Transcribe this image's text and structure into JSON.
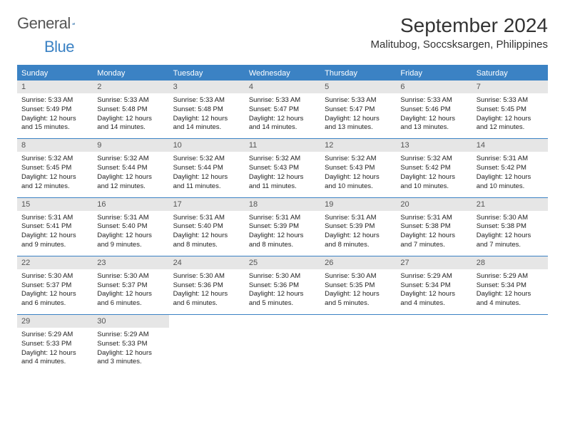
{
  "brand": {
    "name1": "General",
    "name2": "Blue"
  },
  "title": "September 2024",
  "location": "Malitubog, Soccsksargen, Philippines",
  "colors": {
    "accent": "#3b82c4",
    "dayNumBg": "#e6e6e6",
    "text": "#222222",
    "headerText": "#ffffff",
    "background": "#ffffff"
  },
  "dow": [
    "Sunday",
    "Monday",
    "Tuesday",
    "Wednesday",
    "Thursday",
    "Friday",
    "Saturday"
  ],
  "weeks": [
    [
      {
        "n": "1",
        "sunrise": "5:33 AM",
        "sunset": "5:49 PM",
        "daylight": "12 hours and 15 minutes."
      },
      {
        "n": "2",
        "sunrise": "5:33 AM",
        "sunset": "5:48 PM",
        "daylight": "12 hours and 14 minutes."
      },
      {
        "n": "3",
        "sunrise": "5:33 AM",
        "sunset": "5:48 PM",
        "daylight": "12 hours and 14 minutes."
      },
      {
        "n": "4",
        "sunrise": "5:33 AM",
        "sunset": "5:47 PM",
        "daylight": "12 hours and 14 minutes."
      },
      {
        "n": "5",
        "sunrise": "5:33 AM",
        "sunset": "5:47 PM",
        "daylight": "12 hours and 13 minutes."
      },
      {
        "n": "6",
        "sunrise": "5:33 AM",
        "sunset": "5:46 PM",
        "daylight": "12 hours and 13 minutes."
      },
      {
        "n": "7",
        "sunrise": "5:33 AM",
        "sunset": "5:45 PM",
        "daylight": "12 hours and 12 minutes."
      }
    ],
    [
      {
        "n": "8",
        "sunrise": "5:32 AM",
        "sunset": "5:45 PM",
        "daylight": "12 hours and 12 minutes."
      },
      {
        "n": "9",
        "sunrise": "5:32 AM",
        "sunset": "5:44 PM",
        "daylight": "12 hours and 12 minutes."
      },
      {
        "n": "10",
        "sunrise": "5:32 AM",
        "sunset": "5:44 PM",
        "daylight": "12 hours and 11 minutes."
      },
      {
        "n": "11",
        "sunrise": "5:32 AM",
        "sunset": "5:43 PM",
        "daylight": "12 hours and 11 minutes."
      },
      {
        "n": "12",
        "sunrise": "5:32 AM",
        "sunset": "5:43 PM",
        "daylight": "12 hours and 10 minutes."
      },
      {
        "n": "13",
        "sunrise": "5:32 AM",
        "sunset": "5:42 PM",
        "daylight": "12 hours and 10 minutes."
      },
      {
        "n": "14",
        "sunrise": "5:31 AM",
        "sunset": "5:42 PM",
        "daylight": "12 hours and 10 minutes."
      }
    ],
    [
      {
        "n": "15",
        "sunrise": "5:31 AM",
        "sunset": "5:41 PM",
        "daylight": "12 hours and 9 minutes."
      },
      {
        "n": "16",
        "sunrise": "5:31 AM",
        "sunset": "5:40 PM",
        "daylight": "12 hours and 9 minutes."
      },
      {
        "n": "17",
        "sunrise": "5:31 AM",
        "sunset": "5:40 PM",
        "daylight": "12 hours and 8 minutes."
      },
      {
        "n": "18",
        "sunrise": "5:31 AM",
        "sunset": "5:39 PM",
        "daylight": "12 hours and 8 minutes."
      },
      {
        "n": "19",
        "sunrise": "5:31 AM",
        "sunset": "5:39 PM",
        "daylight": "12 hours and 8 minutes."
      },
      {
        "n": "20",
        "sunrise": "5:31 AM",
        "sunset": "5:38 PM",
        "daylight": "12 hours and 7 minutes."
      },
      {
        "n": "21",
        "sunrise": "5:30 AM",
        "sunset": "5:38 PM",
        "daylight": "12 hours and 7 minutes."
      }
    ],
    [
      {
        "n": "22",
        "sunrise": "5:30 AM",
        "sunset": "5:37 PM",
        "daylight": "12 hours and 6 minutes."
      },
      {
        "n": "23",
        "sunrise": "5:30 AM",
        "sunset": "5:37 PM",
        "daylight": "12 hours and 6 minutes."
      },
      {
        "n": "24",
        "sunrise": "5:30 AM",
        "sunset": "5:36 PM",
        "daylight": "12 hours and 6 minutes."
      },
      {
        "n": "25",
        "sunrise": "5:30 AM",
        "sunset": "5:36 PM",
        "daylight": "12 hours and 5 minutes."
      },
      {
        "n": "26",
        "sunrise": "5:30 AM",
        "sunset": "5:35 PM",
        "daylight": "12 hours and 5 minutes."
      },
      {
        "n": "27",
        "sunrise": "5:29 AM",
        "sunset": "5:34 PM",
        "daylight": "12 hours and 4 minutes."
      },
      {
        "n": "28",
        "sunrise": "5:29 AM",
        "sunset": "5:34 PM",
        "daylight": "12 hours and 4 minutes."
      }
    ],
    [
      {
        "n": "29",
        "sunrise": "5:29 AM",
        "sunset": "5:33 PM",
        "daylight": "12 hours and 4 minutes."
      },
      {
        "n": "30",
        "sunrise": "5:29 AM",
        "sunset": "5:33 PM",
        "daylight": "12 hours and 3 minutes."
      },
      null,
      null,
      null,
      null,
      null
    ]
  ],
  "labels": {
    "sunrise": "Sunrise:",
    "sunset": "Sunset:",
    "daylight": "Daylight:"
  }
}
